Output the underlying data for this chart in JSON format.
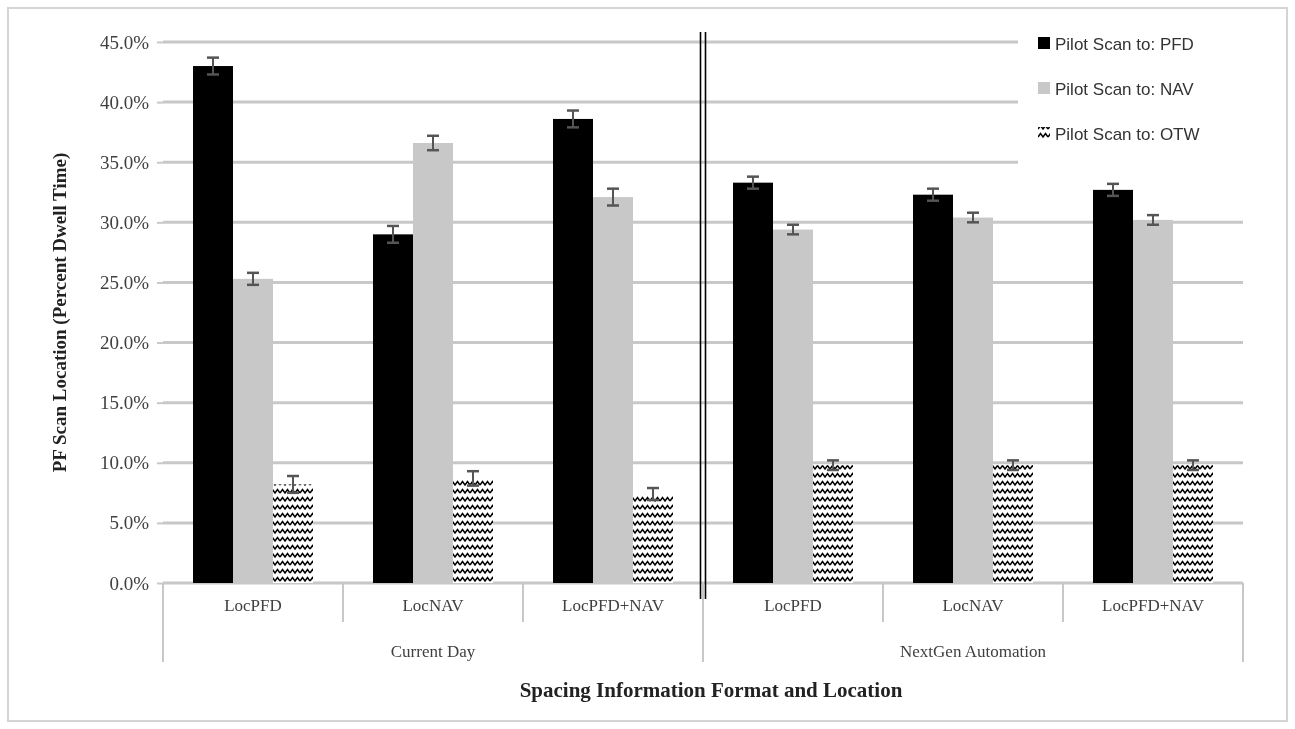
{
  "chart_data": {
    "type": "bar",
    "xlabel": "Spacing Information Format and Location",
    "ylabel": "PF Scan Location (Percent Dwell Time)",
    "categories": [
      "LocPFD",
      "LocNAV",
      "LocPFD+NAV",
      "LocPFD",
      "LocNAV",
      "LocPFD+NAV"
    ],
    "annotations": [
      "Current Day",
      "NextGen Automation"
    ],
    "series": [
      {
        "name": "Pilot Scan to: PFD",
        "color": "#000000",
        "values": [
          43.0,
          29.0,
          38.6,
          33.3,
          32.3,
          32.7
        ],
        "errors": [
          0.7,
          0.7,
          0.7,
          0.5,
          0.5,
          0.5
        ]
      },
      {
        "name": "Pilot Scan to: NAV",
        "color": "#c8c8c8",
        "values": [
          25.3,
          36.6,
          32.1,
          29.4,
          30.4,
          30.2
        ],
        "errors": [
          0.5,
          0.6,
          0.7,
          0.4,
          0.4,
          0.4
        ]
      },
      {
        "name": "Pilot Scan to: OTW",
        "color": "#000000",
        "values": [
          8.2,
          8.7,
          7.4,
          9.8,
          9.8,
          9.8
        ],
        "errors": [
          0.7,
          0.6,
          0.5,
          0.4,
          0.4,
          0.4
        ]
      }
    ],
    "ylim": [
      0,
      45
    ],
    "yticks": [
      {
        "value": 0,
        "label": "0.0%"
      },
      {
        "value": 5,
        "label": "5.0%"
      },
      {
        "value": 10,
        "label": "10.0%"
      },
      {
        "value": 15,
        "label": "15.0%"
      },
      {
        "value": 20,
        "label": "20.0%"
      },
      {
        "value": 25,
        "label": "25.0%"
      },
      {
        "value": 30,
        "label": "30.0%"
      },
      {
        "value": 35,
        "label": "35.0%"
      },
      {
        "value": 40,
        "label": "40.0%"
      },
      {
        "value": 45,
        "label": "45.0%"
      }
    ],
    "grid": "y",
    "legend": "top right"
  }
}
